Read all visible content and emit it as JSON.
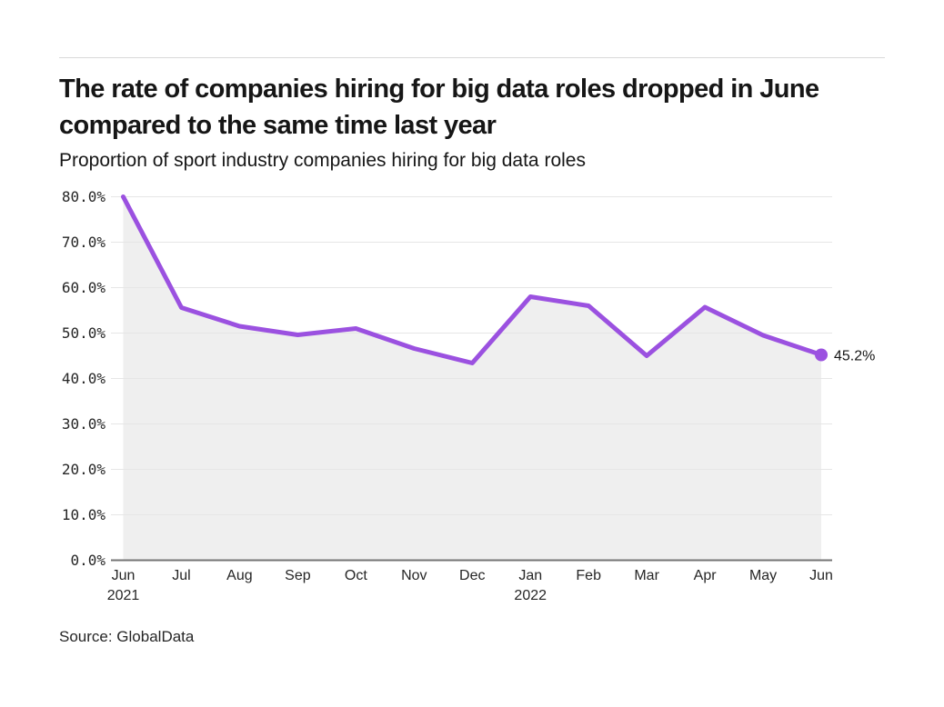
{
  "header": {
    "title": "The rate of companies hiring for big data roles dropped in June compared to the same time last year",
    "subtitle": "Proportion of sport industry companies hiring for big data roles"
  },
  "footer": {
    "source": "Source: GlobalData"
  },
  "colors": {
    "line": "#9b51e0",
    "area": "#efefef",
    "grid": "#e6e6e6",
    "axis": "#757575",
    "tick_text": "#262626"
  },
  "chart_data": {
    "type": "line",
    "title": "The rate of companies hiring for big data roles dropped in June compared to the same time last year",
    "subtitle": "Proportion of sport industry companies hiring for big data roles",
    "x": [
      "Jun 2021",
      "Jul",
      "Aug",
      "Sep",
      "Oct",
      "Nov",
      "Dec",
      "Jan 2022",
      "Feb",
      "Mar",
      "Apr",
      "May",
      "Jun"
    ],
    "series": [
      {
        "name": "Proportion of sport industry companies hiring for big data roles",
        "values": [
          80.0,
          55.6,
          51.5,
          49.6,
          51.0,
          46.6,
          43.4,
          58.0,
          56.0,
          45.0,
          55.7,
          49.5,
          45.2
        ]
      }
    ],
    "end_label": "45.2%",
    "ylim": [
      0,
      80
    ],
    "ytick_step": 10,
    "ytick_suffix": "%",
    "xlabel": "",
    "ylabel": "",
    "grid": "horizontal",
    "legend": "none",
    "area_fill": true
  }
}
